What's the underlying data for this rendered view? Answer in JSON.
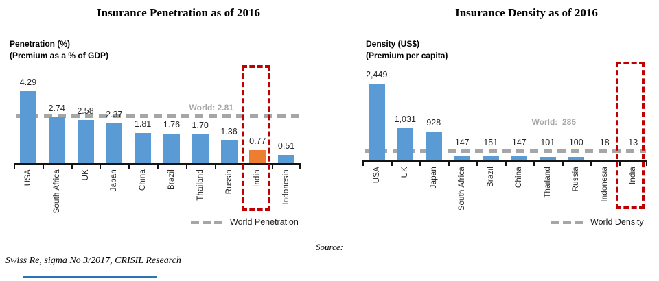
{
  "page": {
    "source_label": "Source:",
    "source_text": "Swiss Re, sigma No 3/2017, CRISIL Research"
  },
  "colors": {
    "bar_blue": "#5B9BD5",
    "bar_orange": "#ED7D31",
    "highlight_red": "#C00000",
    "world_gray": "#A6A6A6"
  },
  "chart_data": [
    {
      "type": "bar",
      "title": "Insurance Penetration as of 2016",
      "ylabel_lines": [
        "Penetration (%)",
        "(Premium as a % of GDP)"
      ],
      "categories": [
        "USA",
        "South Africa",
        "UK",
        "Japan",
        "China",
        "Brazil",
        "Thailand",
        "Russia",
        "India",
        "Indonesia"
      ],
      "values": [
        4.29,
        2.74,
        2.58,
        2.37,
        1.81,
        1.76,
        1.7,
        1.36,
        0.77,
        0.51
      ],
      "value_labels": [
        "4.29",
        "2.74",
        "2.58",
        "2.37",
        "1.81",
        "1.76",
        "1.70",
        "1.36",
        "0.77",
        "0.51"
      ],
      "highlight_index": 8,
      "highlight_color": "#ED7D31",
      "highlight_category": "India",
      "reference_line": {
        "label": "World: 2.81",
        "value": 2.81
      },
      "legend": "World Penetration",
      "ylim": [
        0,
        4.5
      ],
      "grid": false,
      "legend_position": "bottom-right"
    },
    {
      "type": "bar",
      "title": "Insurance Density as of 2016",
      "ylabel_lines": [
        "Density (US$)",
        "(Premium per capita)"
      ],
      "categories": [
        "USA",
        "UK",
        "Japan",
        "South Africa",
        "Brazil",
        "China",
        "Thailand",
        "Russia",
        "Indonesia",
        "India"
      ],
      "values": [
        2449,
        1031,
        928,
        147,
        151,
        147,
        101,
        100,
        18,
        13
      ],
      "value_labels": [
        "2,449",
        "1,031",
        "928",
        "147",
        "151",
        "147",
        "101",
        "100",
        "18",
        "13"
      ],
      "highlight_index": 9,
      "highlight_color": null,
      "highlight_category": "India",
      "reference_line": {
        "label": "World:  285",
        "value": 285
      },
      "legend": "World Density",
      "ylim": [
        0,
        2600
      ],
      "grid": false,
      "legend_position": "bottom-right"
    }
  ]
}
